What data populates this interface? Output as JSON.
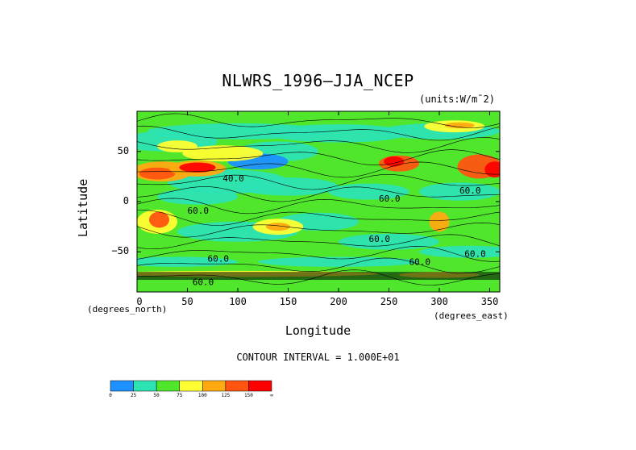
{
  "chart_data": {
    "type": "heatmap",
    "title": "NLWRS_1996—JJA_NCEP",
    "units_label": "(units:W/m¯2)",
    "xlabel": "Longitude",
    "ylabel": "Latitude",
    "x_unit_note": "(degrees_east)",
    "y_unit_note": "(degrees_north)",
    "contour_label": "CONTOUR INTERVAL = 1.000E+01",
    "xlim": [
      0,
      360
    ],
    "ylim": [
      -90,
      90
    ],
    "x_ticks": [
      0,
      50,
      100,
      150,
      200,
      250,
      300,
      350
    ],
    "y_ticks": [
      50,
      0,
      -50
    ],
    "contour_values": [
      "40.0",
      "60.0",
      "60.0",
      "60.0",
      "60.0",
      "60.0",
      "60.0",
      "60.0",
      "60.0"
    ],
    "colorbar": {
      "ticks": [
        "0",
        "25",
        "50",
        "75",
        "100",
        "125",
        "150",
        "∞"
      ],
      "colors": [
        "#1e90ff",
        "#2de3b4",
        "#4fe62c",
        "#ffff33",
        "#ffaa11",
        "#ff5511",
        "#ff0000"
      ]
    }
  }
}
